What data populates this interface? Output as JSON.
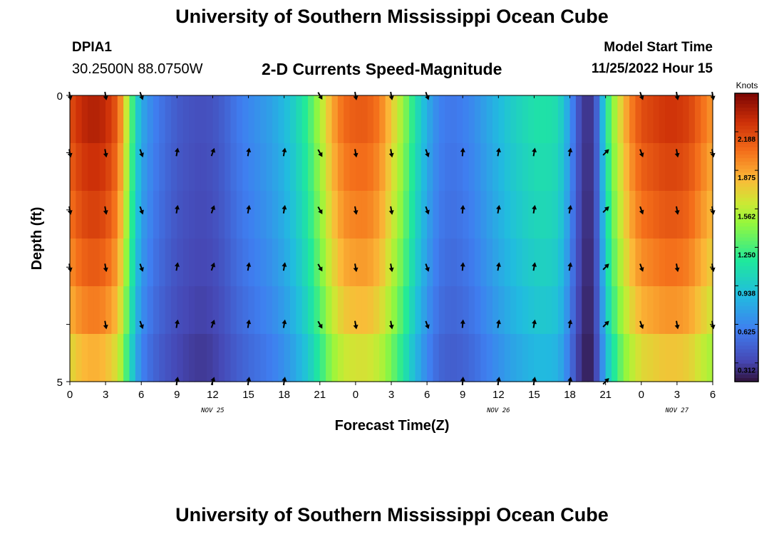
{
  "header": {
    "title": "University of Southern Mississippi Ocean Cube",
    "station": "DPIA1",
    "coords": "30.2500N  88.0750W",
    "chart_title": "2-D Currents Speed-Magnitude",
    "start_label": "Model Start Time",
    "start_value": "11/25/2022 Hour 15"
  },
  "footer": {
    "title": "University of Southern Mississippi Ocean Cube"
  },
  "chart_data": {
    "type": "heatmap",
    "title": "2-D Currents Speed-Magnitude",
    "xlabel": "Forecast Time(Z)",
    "ylabel": "Depth (ft)",
    "colorbar_label": "Knots",
    "colorbar_ticks": [
      "0.312",
      "0.625",
      "0.938",
      "1.250",
      "1.562",
      "1.875",
      "2.188"
    ],
    "color_range": [
      0.16,
      2.5
    ],
    "y_tick_labels": [
      "0",
      "5"
    ],
    "y_range": [
      0,
      5
    ],
    "x_range_hours": [
      0,
      54
    ],
    "x_tick_labels": [
      "0",
      "3",
      "6",
      "9",
      "12",
      "15",
      "18",
      "21",
      "0",
      "3",
      "6",
      "9",
      "12",
      "15",
      "18",
      "21",
      "0",
      "3",
      "6"
    ],
    "date_labels": [
      "NOV 25",
      "NOV 26",
      "NOV 27"
    ],
    "date_label_hours": [
      12,
      36,
      51
    ],
    "grid": false,
    "speed_profile": {
      "hours": [
        0,
        1,
        2,
        3,
        4,
        4.5,
        5,
        5.5,
        6,
        7,
        8,
        9,
        10,
        11,
        12,
        13,
        14,
        15,
        16,
        17,
        18,
        19,
        20,
        21,
        22,
        23,
        24,
        25,
        26,
        27,
        28,
        29,
        30,
        31,
        32,
        33,
        34,
        35,
        36,
        37,
        38,
        39,
        40,
        41,
        41.5,
        42,
        42.5,
        43,
        43.5,
        44,
        44.5,
        45,
        46,
        47,
        48,
        49,
        50,
        51,
        52,
        53,
        54
      ],
      "knots": [
        2.15,
        2.3,
        2.35,
        2.3,
        2.1,
        1.8,
        1.4,
        1.05,
        0.78,
        0.6,
        0.5,
        0.42,
        0.38,
        0.36,
        0.38,
        0.45,
        0.55,
        0.62,
        0.68,
        0.75,
        0.85,
        1.0,
        1.2,
        1.5,
        1.85,
        2.05,
        2.1,
        2.1,
        2.0,
        1.75,
        1.45,
        1.1,
        0.8,
        0.6,
        0.55,
        0.58,
        0.65,
        0.75,
        0.85,
        0.95,
        1.02,
        1.08,
        1.1,
        1.05,
        0.9,
        0.7,
        0.45,
        0.3,
        0.25,
        0.3,
        0.6,
        1.1,
        1.6,
        1.95,
        2.15,
        2.2,
        2.25,
        2.25,
        2.2,
        2.05,
        1.9
      ]
    },
    "layer_speed_factors": [
      1.0,
      0.97,
      0.94,
      0.9,
      0.85,
      0.78
    ],
    "current_vectors": {
      "hours": [
        0,
        3,
        6,
        9,
        12,
        15,
        18,
        21,
        24,
        27,
        30,
        33,
        36,
        39,
        42,
        45,
        48,
        51,
        54
      ],
      "depths": [
        0,
        1,
        2,
        3,
        4,
        5
      ],
      "directions_deg": [
        [
          170,
          170,
          160,
          null,
          null,
          null,
          null,
          150,
          170,
          170,
          160,
          null,
          null,
          null,
          null,
          null,
          160,
          170,
          170
        ],
        [
          170,
          170,
          160,
          10,
          20,
          10,
          10,
          150,
          170,
          170,
          160,
          5,
          10,
          10,
          10,
          45,
          160,
          170,
          170
        ],
        [
          170,
          170,
          160,
          10,
          20,
          10,
          10,
          150,
          170,
          170,
          160,
          5,
          10,
          10,
          10,
          45,
          160,
          170,
          170
        ],
        [
          170,
          170,
          160,
          10,
          20,
          10,
          10,
          150,
          170,
          170,
          160,
          5,
          10,
          10,
          10,
          45,
          160,
          170,
          170
        ],
        [
          null,
          170,
          160,
          10,
          20,
          10,
          10,
          150,
          170,
          170,
          160,
          5,
          10,
          10,
          10,
          45,
          160,
          170,
          170
        ],
        [
          null,
          null,
          null,
          10,
          20,
          10,
          10,
          null,
          null,
          null,
          null,
          5,
          10,
          10,
          10,
          45,
          null,
          null,
          null
        ]
      ]
    }
  }
}
